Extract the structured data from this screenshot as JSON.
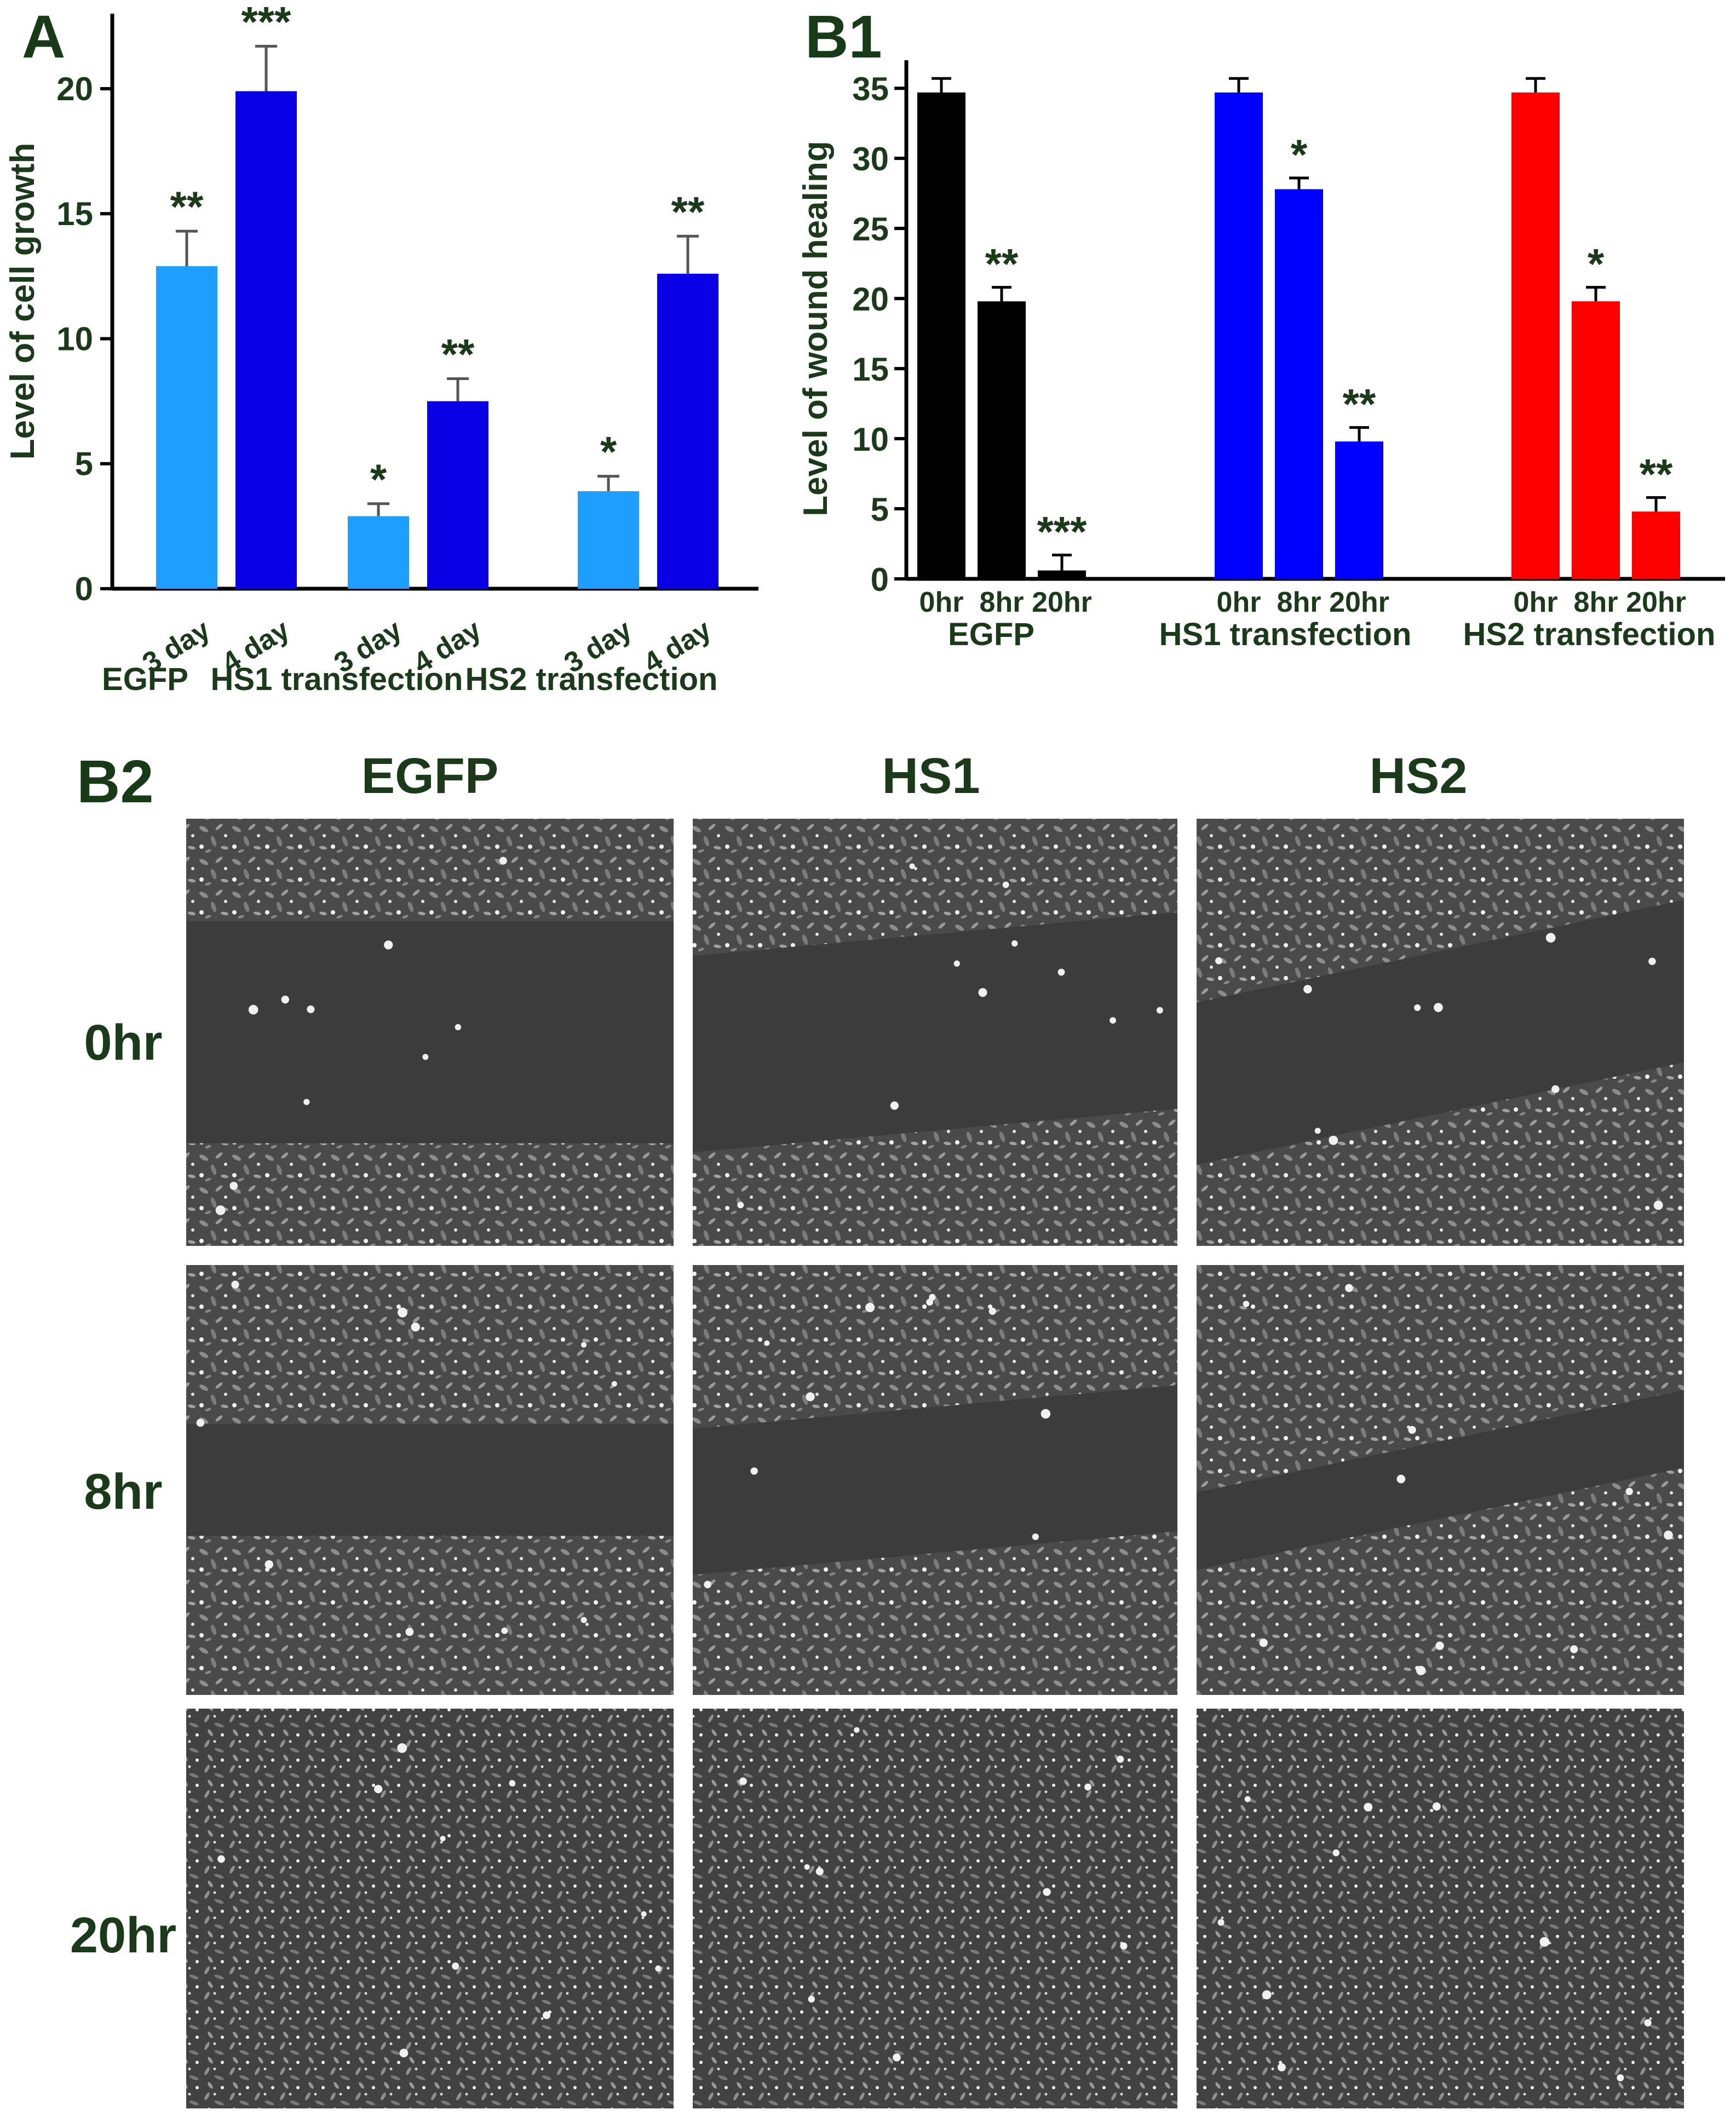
{
  "panels": {
    "a": {
      "letter": "A"
    },
    "b1": {
      "letter": "B1"
    },
    "b2": {
      "letter": "B2"
    }
  },
  "chart_data": [
    {
      "type": "bar",
      "panel": "A",
      "ylabel": "Level of cell growth",
      "ylim": [
        0,
        23
      ],
      "yticks": [
        0,
        5,
        10,
        15,
        20
      ],
      "groups": [
        "EGFP",
        "HS1 transfection",
        "HS2 transfection"
      ],
      "bar_labels": [
        "3 day",
        "4 day"
      ],
      "series": [
        {
          "name": "3 day",
          "color": "#1e9fff",
          "values": [
            12.9,
            2.9,
            3.9
          ],
          "errors": [
            1.4,
            0.5,
            0.6
          ],
          "significance": [
            "**",
            "*",
            "*"
          ]
        },
        {
          "name": "4 day",
          "color": "#0a00e6",
          "values": [
            19.9,
            7.5,
            12.6
          ],
          "errors": [
            1.8,
            0.9,
            1.5
          ],
          "significance": [
            "***",
            "**",
            "**"
          ]
        }
      ]
    },
    {
      "type": "bar",
      "panel": "B1",
      "ylabel": "Level of wound healing",
      "ylim": [
        0,
        37
      ],
      "yticks": [
        0,
        5,
        10,
        15,
        20,
        25,
        30,
        35
      ],
      "groups": [
        "EGFP",
        "HS1 transfection",
        "HS2 transfection"
      ],
      "bar_labels": [
        "0hr",
        "8hr",
        "20hr"
      ],
      "group_colors": [
        "#000000",
        "#0000ff",
        "#ff0000"
      ],
      "values": [
        [
          34.7,
          19.8,
          0.6
        ],
        [
          34.7,
          27.8,
          9.8
        ],
        [
          34.7,
          19.8,
          4.8
        ]
      ],
      "errors": [
        [
          1.0,
          1.0,
          1.1
        ],
        [
          1.0,
          0.8,
          1.0
        ],
        [
          1.0,
          1.0,
          1.0
        ]
      ],
      "significance": [
        [
          "",
          "**",
          "***"
        ],
        [
          "",
          "*",
          "**"
        ],
        [
          "",
          "*",
          "**"
        ]
      ]
    }
  ],
  "micrographs": {
    "columns": [
      "EGFP",
      "HS1",
      "HS2"
    ],
    "rows": [
      "0hr",
      "8hr",
      "20hr"
    ],
    "gap_fraction": [
      [
        0.52,
        0.46,
        0.38
      ],
      [
        0.26,
        0.34,
        0.18
      ],
      [
        0.0,
        0.0,
        0.0
      ]
    ]
  }
}
